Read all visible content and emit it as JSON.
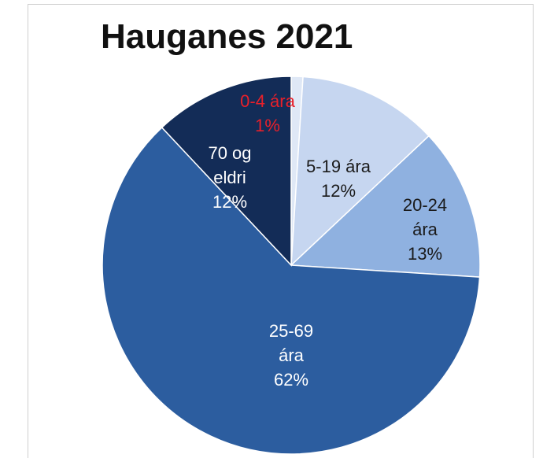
{
  "chart_data": {
    "type": "pie",
    "title": "Hauganes 2021",
    "categories": [
      "0-4 ára",
      "5-19 ára",
      "20-24 ára",
      "25-69 ára",
      "70 og eldri"
    ],
    "values": [
      1,
      12,
      13,
      62,
      12
    ],
    "value_labels": [
      "1%",
      "12%",
      "13%",
      "62%",
      "12%"
    ],
    "colors": [
      "#dfe8f6",
      "#c6d6f0",
      "#8fb1e0",
      "#2c5d9f",
      "#132c57"
    ],
    "label_colors": [
      "#e8202a",
      "#1a1a1a",
      "#1a1a1a",
      "#ffffff",
      "#ffffff"
    ]
  }
}
